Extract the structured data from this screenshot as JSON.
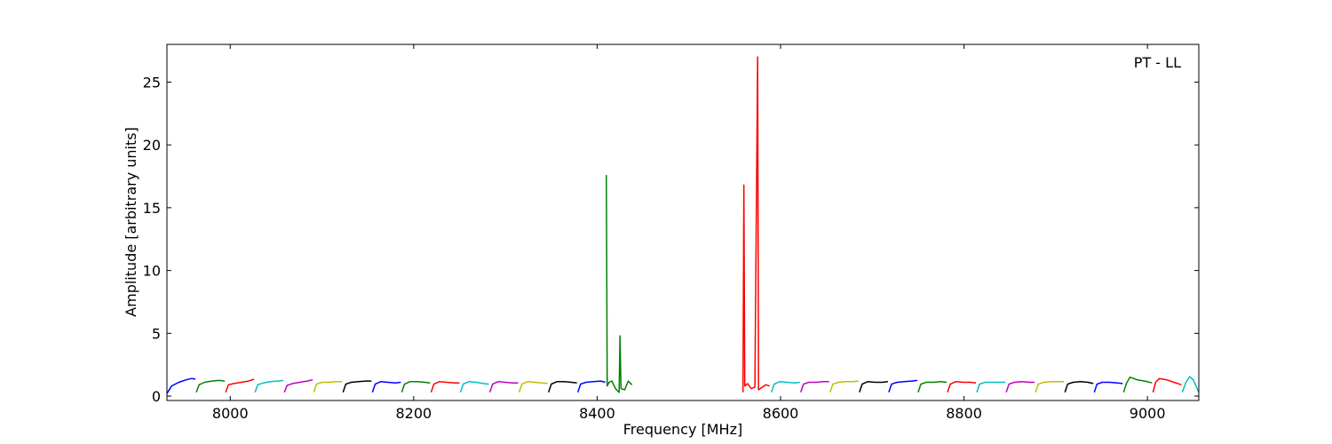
{
  "chart_data": {
    "type": "line",
    "annotation": "PT - LL",
    "x_label": "Frequency [MHz]",
    "y_label": "Amplitude [arbitrary units]",
    "xlim": [
      7931,
      9056
    ],
    "ylim": [
      -0.35,
      28
    ],
    "xticks": [
      8000,
      8200,
      8400,
      8600,
      8800,
      9000
    ],
    "yticks": [
      0,
      5,
      10,
      15,
      20,
      25
    ],
    "grid": false,
    "series": [
      {
        "color": "#0000ff",
        "x": [
          7931,
          7936,
          7944,
          7952,
          7958,
          7962
        ],
        "values": [
          0.2,
          0.8,
          1.1,
          1.3,
          1.4,
          1.35
        ]
      },
      {
        "color": "#008000",
        "x": [
          7963,
          7966,
          7972,
          7980,
          7988,
          7994
        ],
        "values": [
          0.3,
          0.9,
          1.1,
          1.2,
          1.25,
          1.2
        ]
      },
      {
        "color": "#ff0000",
        "x": [
          7995,
          7998,
          8004,
          8012,
          8020,
          8026
        ],
        "values": [
          0.3,
          0.9,
          1.0,
          1.1,
          1.2,
          1.35
        ]
      },
      {
        "color": "#00bfbf",
        "x": [
          8027,
          8030,
          8036,
          8044,
          8052,
          8058
        ],
        "values": [
          0.3,
          0.9,
          1.05,
          1.15,
          1.2,
          1.25
        ]
      },
      {
        "color": "#bf00bf",
        "x": [
          8059,
          8062,
          8068,
          8076,
          8084,
          8090
        ],
        "values": [
          0.3,
          0.85,
          1.0,
          1.1,
          1.2,
          1.3
        ]
      },
      {
        "color": "#bfbf00",
        "x": [
          8091,
          8094,
          8100,
          8108,
          8116,
          8122
        ],
        "values": [
          0.3,
          0.95,
          1.1,
          1.1,
          1.15,
          1.15
        ]
      },
      {
        "color": "#000000",
        "x": [
          8123,
          8126,
          8132,
          8140,
          8148,
          8154
        ],
        "values": [
          0.3,
          0.95,
          1.1,
          1.15,
          1.2,
          1.2
        ]
      },
      {
        "color": "#0000ff",
        "x": [
          8155,
          8158,
          8164,
          8172,
          8180,
          8186
        ],
        "values": [
          0.3,
          0.95,
          1.15,
          1.1,
          1.05,
          1.1
        ]
      },
      {
        "color": "#008000",
        "x": [
          8187,
          8190,
          8196,
          8204,
          8212,
          8218
        ],
        "values": [
          0.3,
          0.95,
          1.15,
          1.15,
          1.1,
          1.05
        ]
      },
      {
        "color": "#ff0000",
        "x": [
          8219,
          8222,
          8228,
          8236,
          8244,
          8250
        ],
        "values": [
          0.3,
          0.95,
          1.15,
          1.1,
          1.05,
          1.05
        ]
      },
      {
        "color": "#00bfbf",
        "x": [
          8251,
          8254,
          8260,
          8268,
          8276,
          8282
        ],
        "values": [
          0.3,
          0.95,
          1.15,
          1.1,
          1.0,
          0.95
        ]
      },
      {
        "color": "#bf00bf",
        "x": [
          8283,
          8286,
          8292,
          8300,
          8308,
          8314
        ],
        "values": [
          0.3,
          0.95,
          1.15,
          1.1,
          1.05,
          1.05
        ]
      },
      {
        "color": "#bfbf00",
        "x": [
          8315,
          8318,
          8324,
          8332,
          8340,
          8346
        ],
        "values": [
          0.3,
          0.95,
          1.15,
          1.1,
          1.05,
          1.0
        ]
      },
      {
        "color": "#000000",
        "x": [
          8347,
          8350,
          8356,
          8364,
          8372,
          8378
        ],
        "values": [
          0.3,
          0.95,
          1.15,
          1.15,
          1.1,
          1.05
        ]
      },
      {
        "color": "#0000ff",
        "x": [
          8379,
          8382,
          8388,
          8396,
          8404,
          8409
        ],
        "values": [
          0.3,
          0.95,
          1.1,
          1.15,
          1.2,
          1.1
        ]
      },
      {
        "color": "#008000",
        "x": [
          8410,
          8411,
          8413,
          8416,
          8420,
          8424,
          8425,
          8426,
          8430,
          8434,
          8438
        ],
        "values": [
          17.6,
          0.8,
          1.1,
          1.2,
          0.6,
          0.3,
          4.8,
          0.6,
          0.5,
          1.2,
          0.9
        ]
      },
      {
        "color": "#ff0000",
        "x": [
          8559,
          8560,
          8561,
          8564,
          8568,
          8572,
          8575,
          8576,
          8580,
          8584,
          8588
        ],
        "values": [
          0.3,
          16.8,
          0.8,
          1.0,
          0.6,
          0.7,
          27,
          0.5,
          0.7,
          0.9,
          0.8
        ]
      },
      {
        "color": "#00bfbf",
        "x": [
          8590,
          8593,
          8599,
          8607,
          8615,
          8621
        ],
        "values": [
          0.3,
          0.95,
          1.15,
          1.1,
          1.05,
          1.1
        ]
      },
      {
        "color": "#bf00bf",
        "x": [
          8622,
          8625,
          8631,
          8639,
          8647,
          8653
        ],
        "values": [
          0.3,
          0.95,
          1.1,
          1.1,
          1.15,
          1.15
        ]
      },
      {
        "color": "#bfbf00",
        "x": [
          8654,
          8657,
          8663,
          8671,
          8679,
          8685
        ],
        "values": [
          0.3,
          0.95,
          1.1,
          1.15,
          1.15,
          1.2
        ]
      },
      {
        "color": "#000000",
        "x": [
          8686,
          8689,
          8695,
          8703,
          8711,
          8717
        ],
        "values": [
          0.3,
          0.95,
          1.15,
          1.1,
          1.1,
          1.15
        ]
      },
      {
        "color": "#0000ff",
        "x": [
          8718,
          8721,
          8727,
          8735,
          8743,
          8749
        ],
        "values": [
          0.3,
          0.95,
          1.1,
          1.15,
          1.2,
          1.25
        ]
      },
      {
        "color": "#008000",
        "x": [
          8750,
          8753,
          8759,
          8767,
          8775,
          8781
        ],
        "values": [
          0.3,
          0.95,
          1.1,
          1.1,
          1.15,
          1.1
        ]
      },
      {
        "color": "#ff0000",
        "x": [
          8782,
          8785,
          8791,
          8799,
          8807,
          8813
        ],
        "values": [
          0.3,
          0.95,
          1.15,
          1.1,
          1.1,
          1.05
        ]
      },
      {
        "color": "#00bfbf",
        "x": [
          8814,
          8817,
          8823,
          8831,
          8839,
          8845
        ],
        "values": [
          0.3,
          0.95,
          1.1,
          1.1,
          1.1,
          1.1
        ]
      },
      {
        "color": "#bf00bf",
        "x": [
          8846,
          8849,
          8855,
          8863,
          8871,
          8877
        ],
        "values": [
          0.3,
          0.95,
          1.1,
          1.15,
          1.1,
          1.1
        ]
      },
      {
        "color": "#bfbf00",
        "x": [
          8878,
          8881,
          8887,
          8895,
          8903,
          8909
        ],
        "values": [
          0.3,
          0.95,
          1.1,
          1.15,
          1.15,
          1.15
        ]
      },
      {
        "color": "#000000",
        "x": [
          8910,
          8913,
          8919,
          8927,
          8935,
          8941
        ],
        "values": [
          0.3,
          0.95,
          1.1,
          1.15,
          1.1,
          1.0
        ]
      },
      {
        "color": "#0000ff",
        "x": [
          8942,
          8945,
          8951,
          8959,
          8967,
          8973
        ],
        "values": [
          0.3,
          0.95,
          1.1,
          1.1,
          1.05,
          1.0
        ]
      },
      {
        "color": "#008000",
        "x": [
          8974,
          8977,
          8981,
          8989,
          8997,
          9005
        ],
        "values": [
          0.3,
          1.0,
          1.5,
          1.3,
          1.2,
          1.05
        ]
      },
      {
        "color": "#ff0000",
        "x": [
          9006,
          9009,
          9013,
          9021,
          9029,
          9037
        ],
        "values": [
          0.3,
          1.1,
          1.4,
          1.3,
          1.1,
          0.9
        ]
      },
      {
        "color": "#00bfbf",
        "x": [
          9038,
          9042,
          9046,
          9050,
          9053,
          9056
        ],
        "values": [
          0.3,
          1.1,
          1.55,
          1.3,
          0.8,
          0.3
        ]
      }
    ]
  }
}
